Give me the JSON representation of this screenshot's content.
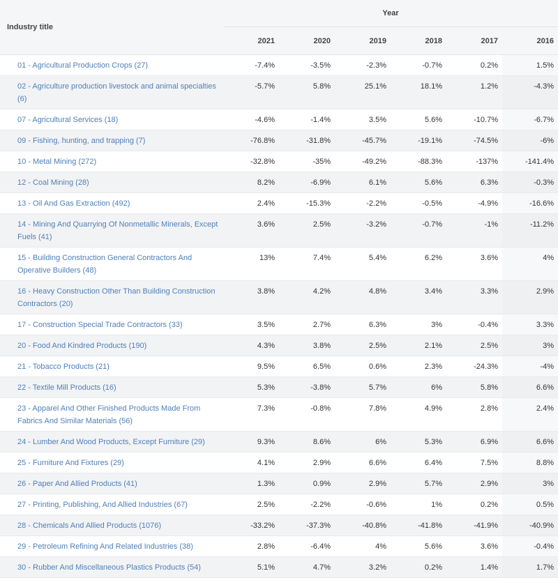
{
  "header": {
    "industry_title": "Industry title",
    "group": "Year",
    "years": [
      "2021",
      "2020",
      "2019",
      "2018",
      "2017",
      "2016"
    ]
  },
  "rows": [
    {
      "title": "01 - Agricultural Production Crops (27)",
      "values": [
        "-7.4%",
        "-3.5%",
        "-2.3%",
        "-0.7%",
        "0.2%",
        "1.5%"
      ]
    },
    {
      "title": "02 - Agriculture production livestock and animal specialties (6)",
      "values": [
        "-5.7%",
        "5.8%",
        "25.1%",
        "18.1%",
        "1.2%",
        "-4.3%"
      ]
    },
    {
      "title": "07 - Agricultural Services (18)",
      "values": [
        "-4.6%",
        "-1.4%",
        "3.5%",
        "5.6%",
        "-10.7%",
        "-6.7%"
      ]
    },
    {
      "title": "09 - Fishing, hunting, and trapping (7)",
      "values": [
        "-76.8%",
        "-31.8%",
        "-45.7%",
        "-19.1%",
        "-74.5%",
        "-6%"
      ]
    },
    {
      "title": "10 - Metal Mining (272)",
      "values": [
        "-32.8%",
        "-35%",
        "-49.2%",
        "-88.3%",
        "-137%",
        "-141.4%"
      ]
    },
    {
      "title": "12 - Coal Mining (28)",
      "values": [
        "8.2%",
        "-6.9%",
        "6.1%",
        "5.6%",
        "6.3%",
        "-0.3%"
      ]
    },
    {
      "title": "13 - Oil And Gas Extraction (492)",
      "values": [
        "2.4%",
        "-15.3%",
        "-2.2%",
        "-0.5%",
        "-4.9%",
        "-16.6%"
      ]
    },
    {
      "title": "14 - Mining And Quarrying Of Nonmetallic Minerals, Except Fuels (41)",
      "values": [
        "3.6%",
        "2.5%",
        "-3.2%",
        "-0.7%",
        "-1%",
        "-11.2%"
      ]
    },
    {
      "title": "15 - Building Construction General Contractors And Operative Builders (48)",
      "values": [
        "13%",
        "7.4%",
        "5.4%",
        "6.2%",
        "3.6%",
        "4%"
      ]
    },
    {
      "title": "16 - Heavy Construction Other Than Building Construction Contractors (20)",
      "values": [
        "3.8%",
        "4.2%",
        "4.8%",
        "3.4%",
        "3.3%",
        "2.9%"
      ]
    },
    {
      "title": "17 - Construction Special Trade Contractors (33)",
      "values": [
        "3.5%",
        "2.7%",
        "6.3%",
        "3%",
        "-0.4%",
        "3.3%"
      ]
    },
    {
      "title": "20 - Food And Kindred Products (190)",
      "values": [
        "4.3%",
        "3.8%",
        "2.5%",
        "2.1%",
        "2.5%",
        "3%"
      ]
    },
    {
      "title": "21 - Tobacco Products (21)",
      "values": [
        "9.5%",
        "6.5%",
        "0.6%",
        "2.3%",
        "-24.3%",
        "-4%"
      ]
    },
    {
      "title": "22 - Textile Mill Products (16)",
      "values": [
        "5.3%",
        "-3.8%",
        "5.7%",
        "6%",
        "5.8%",
        "6.6%"
      ]
    },
    {
      "title": "23 - Apparel And Other Finished Products Made From Fabrics And Similar Materials (56)",
      "values": [
        "7.3%",
        "-0.8%",
        "7.8%",
        "4.9%",
        "2.8%",
        "2.4%"
      ]
    },
    {
      "title": "24 - Lumber And Wood Products, Except Furniture (29)",
      "values": [
        "9.3%",
        "8.6%",
        "6%",
        "5.3%",
        "6.9%",
        "6.6%"
      ]
    },
    {
      "title": "25 - Furniture And Fixtures (29)",
      "values": [
        "4.1%",
        "2.9%",
        "6.6%",
        "6.4%",
        "7.5%",
        "8.8%"
      ]
    },
    {
      "title": "26 - Paper And Allied Products (41)",
      "values": [
        "1.3%",
        "0.9%",
        "2.9%",
        "5.7%",
        "2.9%",
        "3%"
      ]
    },
    {
      "title": "27 - Printing, Publishing, And Allied Industries (67)",
      "values": [
        "2.5%",
        "-2.2%",
        "-0.6%",
        "1%",
        "0.2%",
        "0.5%"
      ]
    },
    {
      "title": "28 - Chemicals And Allied Products (1076)",
      "values": [
        "-33.2%",
        "-37.3%",
        "-40.8%",
        "-41.8%",
        "-41.9%",
        "-40.9%"
      ]
    },
    {
      "title": "29 - Petroleum Refining And Related Industries (38)",
      "values": [
        "2.8%",
        "-6.4%",
        "4%",
        "5.6%",
        "3.6%",
        "-0.4%"
      ]
    },
    {
      "title": "30 - Rubber And Miscellaneous Plastics Products (54)",
      "values": [
        "5.1%",
        "4.7%",
        "3.2%",
        "0.2%",
        "1.4%",
        "1.7%"
      ]
    }
  ]
}
